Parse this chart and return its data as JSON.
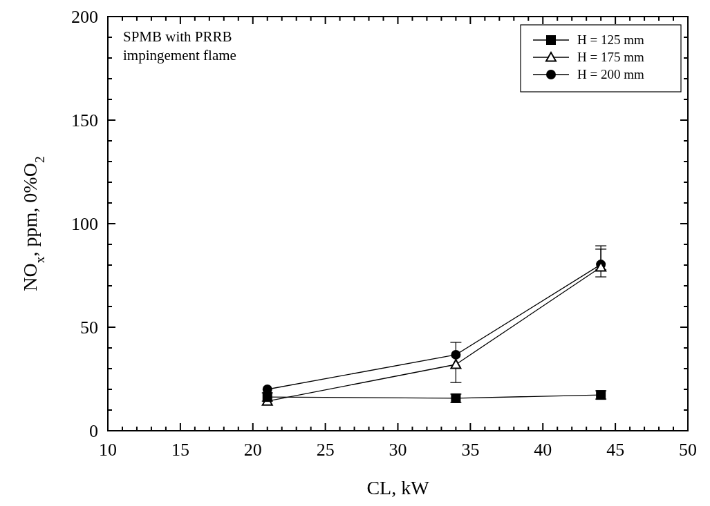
{
  "chart_data": {
    "type": "line",
    "xlabel": "CL, kW",
    "ylabel": "NO$_{x}$, ppm, 0%O$_{2}$",
    "annotations": [
      "SPMB with PRRB\nimpingement flame"
    ],
    "x": [
      21,
      34,
      44
    ],
    "series": [
      {
        "name": "H = 125 mm",
        "color": "#000000",
        "marker": "square",
        "values": [
          16.3,
          15.7,
          17.3
        ],
        "errors": [
          2,
          2,
          2
        ]
      },
      {
        "name": "H = 175 mm",
        "color": "#000000",
        "marker": "triangle",
        "values": [
          14.3,
          32,
          79
        ],
        "errors": [
          null,
          [
            23.3,
            42.7
          ],
          [
            74.3,
            87.7
          ]
        ]
      },
      {
        "name": "H = 200 mm",
        "color": "#000000",
        "marker": "circle",
        "values": [
          20,
          36.7,
          80.3
        ],
        "errors": [
          null,
          null,
          [
            77.7,
            89.3
          ]
        ]
      }
    ],
    "xlim": [
      10,
      50
    ],
    "xticks": [
      10,
      {
        "value": 11,
        "label": null
      },
      {
        "value": 12,
        "label": null
      },
      {
        "value": 13,
        "label": null
      },
      {
        "value": 14,
        "label": null
      },
      15,
      {
        "value": 16,
        "label": null
      },
      {
        "value": 17,
        "label": null
      },
      {
        "value": 18,
        "label": null
      },
      {
        "value": 19,
        "label": null
      },
      20,
      {
        "value": 21,
        "label": null
      },
      {
        "value": 22,
        "label": null
      },
      {
        "value": 23,
        "label": null
      },
      {
        "value": 24,
        "label": null
      },
      25,
      {
        "value": 26,
        "label": null
      },
      {
        "value": 27,
        "label": null
      },
      {
        "value": 28,
        "label": null
      },
      {
        "value": 29,
        "label": null
      },
      30,
      {
        "value": 31,
        "label": null
      },
      {
        "value": 32,
        "label": null
      },
      {
        "value": 33,
        "label": null
      },
      {
        "value": 34,
        "label": null
      },
      35,
      {
        "value": 36,
        "label": null
      },
      {
        "value": 37,
        "label": null
      },
      {
        "value": 38,
        "label": null
      },
      {
        "value": 39,
        "label": null
      },
      40,
      {
        "value": 41,
        "label": null
      },
      {
        "value": 42,
        "label": null
      },
      {
        "value": 43,
        "label": null
      },
      {
        "value": 44,
        "label": null
      },
      45,
      {
        "value": 46,
        "label": null
      },
      {
        "value": 47,
        "label": null
      },
      {
        "value": 48,
        "label": null
      },
      {
        "value": 49,
        "label": null
      },
      50
    ],
    "ylim": [
      0,
      200
    ],
    "yticks": [
      0,
      {
        "value": 10,
        "label": null
      },
      {
        "value": 20,
        "label": null
      },
      {
        "value": 30,
        "label": null
      },
      {
        "value": 40,
        "label": null
      },
      50,
      {
        "value": 60,
        "label": null
      },
      {
        "value": 70,
        "label": null
      },
      {
        "value": 80,
        "label": null
      },
      {
        "value": 90,
        "label": null
      },
      100,
      {
        "value": 110,
        "label": null
      },
      {
        "value": 120,
        "label": null
      },
      {
        "value": 130,
        "label": null
      },
      {
        "value": 140,
        "label": null
      },
      150,
      {
        "value": 160,
        "label": null
      },
      {
        "value": 170,
        "label": null
      },
      {
        "value": 180,
        "label": null
      },
      {
        "value": 190,
        "label": null
      },
      200
    ],
    "grid": false,
    "legend": "top right",
    "line_style": "solid"
  }
}
